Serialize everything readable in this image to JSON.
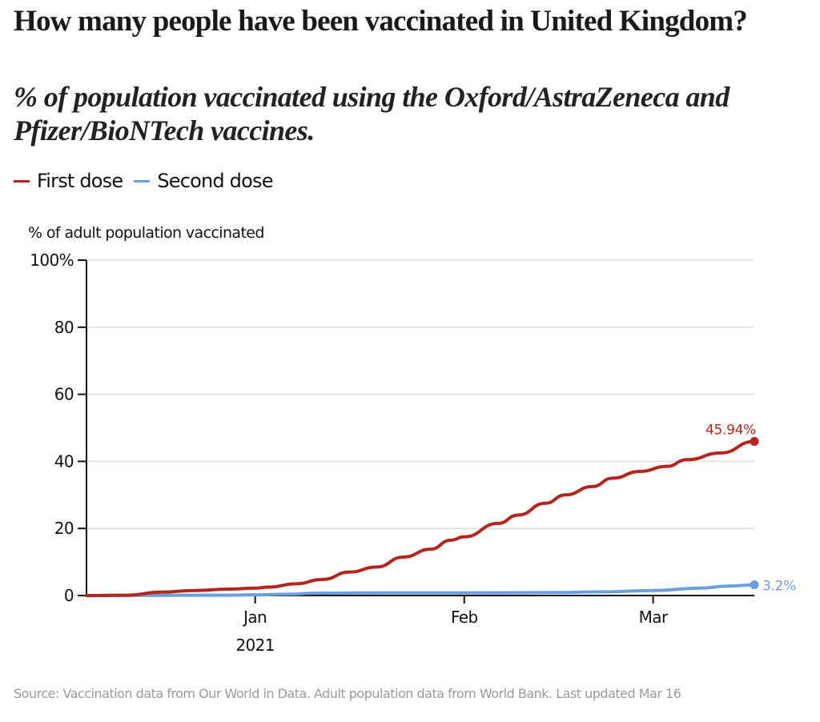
{
  "header": {
    "title": "How many people have been vaccinated in United Kingdom?",
    "subtitle": "% of population vaccinated using the Oxford/AstraZeneca and Pfizer/BioNTech vaccines."
  },
  "legend": [
    {
      "label": "First dose",
      "color": "#b5251d"
    },
    {
      "label": "Second dose",
      "color": "#6b9fdc"
    }
  ],
  "footer": {
    "source": "Source: Vaccination data from Our World in Data. Adult population data from World Bank. Last updated Mar 16"
  },
  "chart_data": {
    "type": "line",
    "title": "How many people have been vaccinated in United Kingdom?",
    "subtitle": "% of population vaccinated using the Oxford/AstraZeneca and Pfizer/BioNTech vaccines.",
    "xlabel": "",
    "ylabel": "% of adult population vaccinated",
    "x_domain": [
      "2020-12-07",
      "2021-03-16"
    ],
    "ylim": [
      0,
      100
    ],
    "y_ticks": [
      {
        "value": 0,
        "label": "0"
      },
      {
        "value": 20,
        "label": "20"
      },
      {
        "value": 40,
        "label": "40"
      },
      {
        "value": 60,
        "label": "60"
      },
      {
        "value": 80,
        "label": "80"
      },
      {
        "value": 100,
        "label": "100%"
      }
    ],
    "x_ticks": [
      {
        "date": "2021-01-01",
        "label": "Jan",
        "sublabel": "2021"
      },
      {
        "date": "2021-02-01",
        "label": "Feb",
        "sublabel": ""
      },
      {
        "date": "2021-03-01",
        "label": "Mar",
        "sublabel": ""
      }
    ],
    "grid": true,
    "legend_position": "top-left",
    "series": [
      {
        "name": "First dose",
        "color": "#b5251d",
        "end_label": "45.94%",
        "points": [
          [
            "2020-12-07",
            0
          ],
          [
            "2020-12-13",
            0.1
          ],
          [
            "2020-12-18",
            1.0
          ],
          [
            "2020-12-23",
            1.5
          ],
          [
            "2020-12-28",
            1.9
          ],
          [
            "2021-01-01",
            2.2
          ],
          [
            "2021-01-03",
            2.5
          ],
          [
            "2021-01-07",
            3.5
          ],
          [
            "2021-01-11",
            4.8
          ],
          [
            "2021-01-15",
            7.0
          ],
          [
            "2021-01-19",
            8.5
          ],
          [
            "2021-01-23",
            11.5
          ],
          [
            "2021-01-27",
            13.8
          ],
          [
            "2021-01-30",
            16.5
          ],
          [
            "2021-02-01",
            17.5
          ],
          [
            "2021-02-06",
            21.5
          ],
          [
            "2021-02-09",
            24.0
          ],
          [
            "2021-02-13",
            27.5
          ],
          [
            "2021-02-16",
            30.0
          ],
          [
            "2021-02-20",
            32.5
          ],
          [
            "2021-02-23",
            35.0
          ],
          [
            "2021-02-27",
            37.0
          ],
          [
            "2021-03-03",
            38.5
          ],
          [
            "2021-03-06",
            40.5
          ],
          [
            "2021-03-11",
            42.5
          ],
          [
            "2021-03-16",
            45.94
          ]
        ]
      },
      {
        "name": "Second dose",
        "color": "#6b9fdc",
        "end_label": "3.2%",
        "points": [
          [
            "2020-12-07",
            0
          ],
          [
            "2020-12-28",
            0.1
          ],
          [
            "2021-01-01",
            0.2
          ],
          [
            "2021-01-06",
            0.4
          ],
          [
            "2021-01-10",
            0.7
          ],
          [
            "2021-01-20",
            0.8
          ],
          [
            "2021-02-01",
            0.8
          ],
          [
            "2021-02-15",
            0.9
          ],
          [
            "2021-02-22",
            1.1
          ],
          [
            "2021-03-01",
            1.5
          ],
          [
            "2021-03-08",
            2.2
          ],
          [
            "2021-03-12",
            2.8
          ],
          [
            "2021-03-16",
            3.2
          ]
        ]
      }
    ]
  }
}
